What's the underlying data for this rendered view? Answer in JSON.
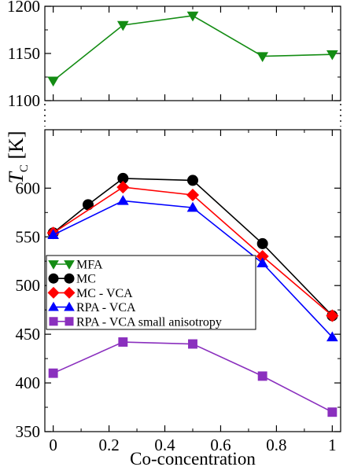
{
  "chart_data": {
    "type": "line",
    "x_label": "Co-concentration",
    "y_label_main": "T",
    "y_label_sub": "C",
    "y_label_unit": "[K]",
    "x_ticks": [
      0,
      0.2,
      0.4,
      0.6,
      0.8,
      1
    ],
    "x_tick_labels": [
      "0",
      "0.2",
      "0.4",
      "0.6",
      "0.8",
      "1"
    ],
    "xlim": [
      -0.03,
      1.03
    ],
    "axis_break": true,
    "legend_position": "lower-left",
    "panels": {
      "upper": {
        "ylim": [
          1100,
          1200
        ],
        "y_ticks": [
          1100,
          1150,
          1200
        ],
        "y_tick_labels": [
          "1100",
          "1150",
          "1200"
        ]
      },
      "lower": {
        "ylim": [
          350,
          660
        ],
        "y_ticks": [
          350,
          400,
          450,
          500,
          550,
          600
        ],
        "y_tick_labels": [
          "350",
          "400",
          "450",
          "500",
          "550",
          "600"
        ]
      }
    },
    "series": [
      {
        "name": "MFA",
        "panel": "upper",
        "color": "#138c13",
        "marker": "triangle-down",
        "x": [
          0,
          0.25,
          0.5,
          0.75,
          1
        ],
        "y": [
          1121,
          1180,
          1190,
          1147,
          1149
        ]
      },
      {
        "name": "MC",
        "panel": "lower",
        "color": "#000000",
        "marker": "circle",
        "x": [
          0,
          0.125,
          0.25,
          0.5,
          0.75,
          1
        ],
        "y": [
          554,
          583,
          610,
          608,
          543,
          469
        ]
      },
      {
        "name": "MC - VCA",
        "panel": "lower",
        "color": "#ff0000",
        "marker": "diamond",
        "x": [
          0,
          0.25,
          0.5,
          0.75,
          1
        ],
        "y": [
          554,
          601,
          593,
          530,
          469
        ]
      },
      {
        "name": "RPA - VCA",
        "panel": "lower",
        "color": "#0000ff",
        "marker": "triangle-up",
        "x": [
          0,
          0.25,
          0.5,
          0.75,
          1
        ],
        "y": [
          552,
          587,
          580,
          523,
          447
        ]
      },
      {
        "name": "RPA - VCA small anisotropy",
        "panel": "lower",
        "color": "#8a2fbe",
        "marker": "square",
        "x": [
          0,
          0.25,
          0.5,
          0.75,
          1
        ],
        "y": [
          410,
          442,
          440,
          407,
          370
        ]
      }
    ]
  }
}
